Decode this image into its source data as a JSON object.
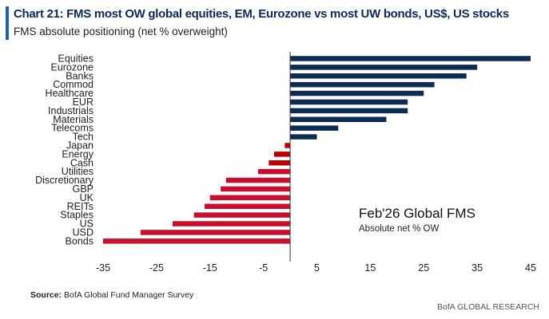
{
  "header": {
    "title": "Chart 21: FMS most OW global equities, EM, Eurozone vs most UW bonds, US$, US stocks",
    "subtitle": "FMS absolute positioning (net % overweight)"
  },
  "footer": {
    "source_label": "Source:",
    "source_text": " BofA Global Fund Manager Survey",
    "brand": "BofA GLOBAL RESEARCH"
  },
  "chart_data": {
    "type": "bar",
    "orientation": "horizontal",
    "annotation_title": "Feb'26 Global FMS",
    "annotation_subtitle": "Absolute net % OW",
    "categories": [
      "Equities",
      "Eurozone",
      "Banks",
      "Commod",
      "Healthcare",
      "EUR",
      "Industrials",
      "Materials",
      "Telecoms",
      "Tech",
      "Japan",
      "Energy",
      "Cash",
      "Utilities",
      "Discretionary",
      "GBP",
      "UK",
      "REITs",
      "Staples",
      "US",
      "USD",
      "Bonds"
    ],
    "values": [
      45,
      35,
      33,
      27,
      25,
      22,
      22,
      18,
      9,
      5,
      -1,
      -3,
      -4,
      -6,
      -12,
      -13,
      -15,
      -16,
      -18,
      -22,
      -28,
      -35
    ],
    "xlim": [
      -35,
      45
    ],
    "xticks": [
      -35,
      -25,
      -15,
      -5,
      5,
      15,
      25,
      35,
      45
    ],
    "colors": {
      "positive": "#0d2c54",
      "negative": "#c8102e",
      "negative_dark": "#c00000"
    }
  }
}
